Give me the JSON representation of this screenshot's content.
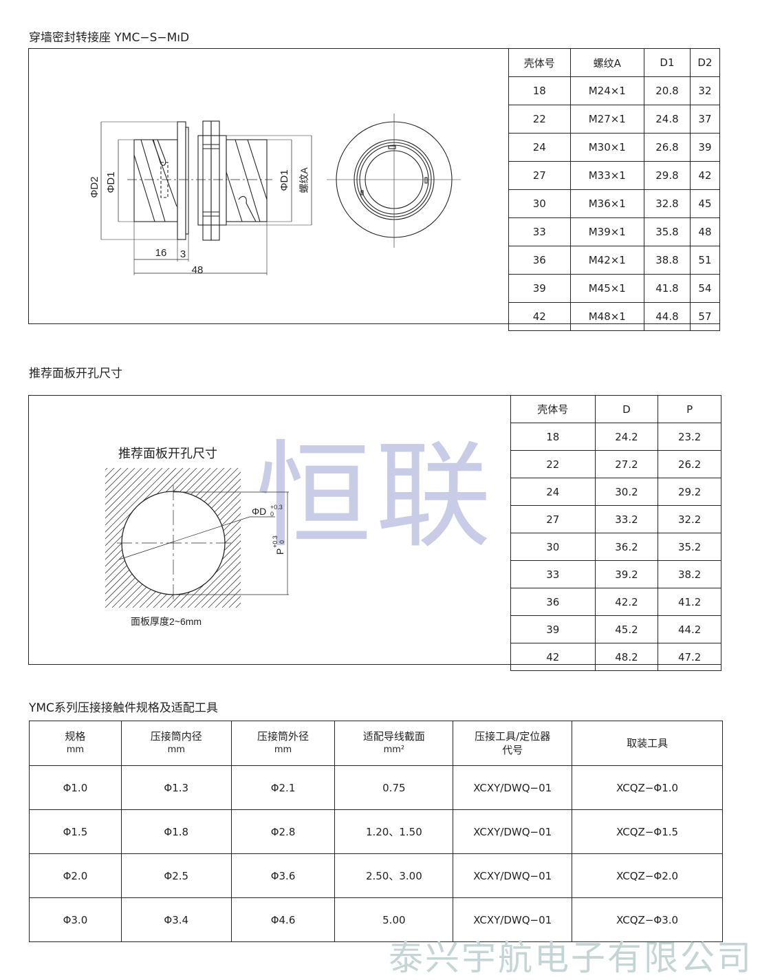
{
  "section1": {
    "title": "穿墙密封转接座 YMC−S−MıD",
    "drawing_labels": {
      "d2": "ΦD2",
      "d1_left": "ΦD1",
      "d1_right": "ΦD1",
      "thread": "螺纹A",
      "dim16": "16",
      "dim3": "3",
      "dim48": "48"
    },
    "table": {
      "headers": [
        "壳体号",
        "螺纹A",
        "D1",
        "D2"
      ],
      "rows": [
        [
          "18",
          "M24×1",
          "20.8",
          "32"
        ],
        [
          "22",
          "M27×1",
          "24.8",
          "37"
        ],
        [
          "24",
          "M30×1",
          "26.8",
          "39"
        ],
        [
          "27",
          "M33×1",
          "29.8",
          "42"
        ],
        [
          "30",
          "M36×1",
          "32.8",
          "45"
        ],
        [
          "33",
          "M39×1",
          "35.8",
          "48"
        ],
        [
          "36",
          "M42×1",
          "38.8",
          "51"
        ],
        [
          "39",
          "M45×1",
          "41.8",
          "54"
        ],
        [
          "42",
          "M48×1",
          "44.8",
          "57"
        ]
      ]
    }
  },
  "section2": {
    "title": "推荐面板开孔尺寸",
    "drawing_title": "推荐面板开孔尺寸",
    "label_d": "ΦD",
    "label_p": "P",
    "tol_upper": "+0.3",
    "tol_lower": "0",
    "panel_note": "面板厚度2~6mm",
    "watermark": "恒联",
    "table": {
      "headers": [
        "壳体号",
        "D",
        "P"
      ],
      "rows": [
        [
          "18",
          "24.2",
          "23.2"
        ],
        [
          "22",
          "27.2",
          "26.2"
        ],
        [
          "24",
          "30.2",
          "29.2"
        ],
        [
          "27",
          "33.2",
          "32.2"
        ],
        [
          "30",
          "36.2",
          "35.2"
        ],
        [
          "33",
          "39.2",
          "38.2"
        ],
        [
          "36",
          "42.2",
          "41.2"
        ],
        [
          "39",
          "45.2",
          "44.2"
        ],
        [
          "42",
          "48.2",
          "47.2"
        ]
      ]
    }
  },
  "section3": {
    "title": "YMC系列压接接触件规格及适配工具",
    "table": {
      "headers": [
        {
          "main": "规格",
          "sub": "mm"
        },
        {
          "main": "压接筒内径",
          "sub": "mm"
        },
        {
          "main": "压接筒外径",
          "sub": "mm"
        },
        {
          "main": "适配导线截面",
          "sub": "mm²"
        },
        {
          "main": "压接工具/定位器",
          "sub": "代号"
        },
        {
          "main": "取装工具",
          "sub": ""
        }
      ],
      "rows": [
        [
          "Φ1.0",
          "Φ1.3",
          "Φ2.1",
          "0.75",
          "XCXY/DWQ−01",
          "XCQZ−Φ1.0"
        ],
        [
          "Φ1.5",
          "Φ1.8",
          "Φ2.8",
          "1.20、1.50",
          "XCXY/DWQ−01",
          "XCQZ−Φ1.5"
        ],
        [
          "Φ2.0",
          "Φ2.5",
          "Φ3.6",
          "2.50、3.00",
          "XCXY/DWQ−01",
          "XCQZ−Φ2.0"
        ],
        [
          "Φ3.0",
          "Φ3.4",
          "Φ4.6",
          "5.00",
          "XCXY/DWQ−01",
          "XCQZ−Φ3.0"
        ]
      ]
    }
  },
  "footer": {
    "company_watermark": "泰兴宇航电子有限公司"
  },
  "colors": {
    "line": "#222222",
    "watermark_logo": "#c9cce6",
    "watermark_company": "#c5d4d4"
  }
}
